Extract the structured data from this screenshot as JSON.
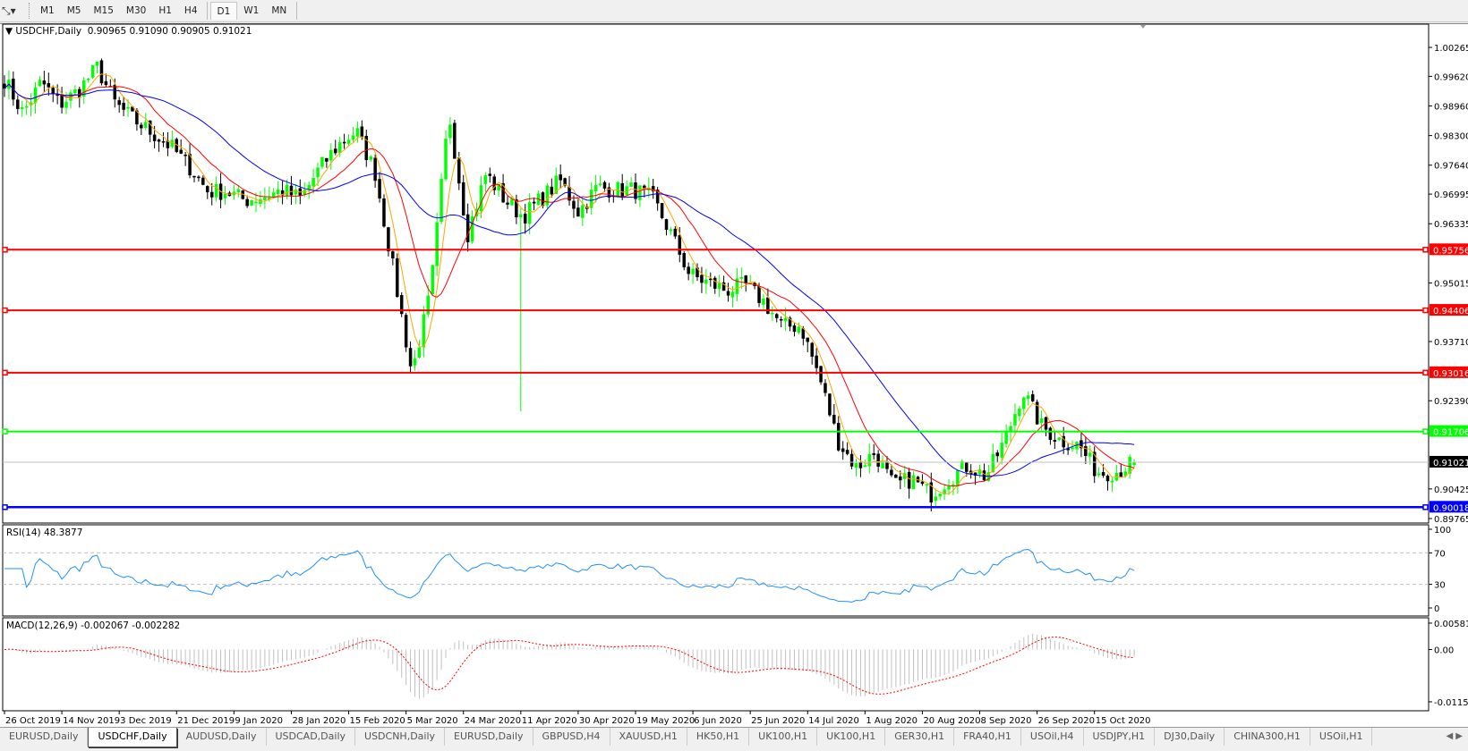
{
  "toolbar": {
    "tool_icon": "line-tools-icon",
    "timeframes": [
      "M1",
      "M5",
      "M15",
      "M30",
      "H1",
      "H4",
      "D1",
      "W1",
      "MN"
    ],
    "active_timeframe": "D1"
  },
  "chart": {
    "symbol_label": "USDCHF,Daily",
    "ohlc": {
      "open": 0.90965,
      "high": 0.9109,
      "low": 0.90905,
      "close": 0.91021
    },
    "ohlc_text": "0.90965 0.91090 0.90905 0.91021",
    "colors": {
      "background": "#ffffff",
      "bull": "#00ff00",
      "bear": "#000000",
      "ma_fast": "#ffa500",
      "ma_mid": "#ff0000",
      "ma_slow": "#0000ff"
    },
    "price_ticks": [
      "1.00265",
      "0.99620",
      "0.98960",
      "0.98300",
      "0.97640",
      "0.96995",
      "0.96335",
      "0.95015",
      "0.93710",
      "0.92390",
      "0.90425",
      "0.89765"
    ],
    "current_price": "0.91021",
    "hlines": [
      {
        "price": 0.95756,
        "label": "0.95756",
        "color": "#ff0000"
      },
      {
        "price": 0.94406,
        "label": "0.94406",
        "color": "#ff0000"
      },
      {
        "price": 0.93016,
        "label": "0.93016",
        "color": "#ff0000"
      },
      {
        "price": 0.91706,
        "label": "0.91706",
        "color": "#00ff00"
      },
      {
        "price": 0.90018,
        "label": "0.90018",
        "color": "#0000ff"
      }
    ],
    "date_ticks": [
      "26 Oct 2019",
      "14 Nov 2019",
      "3 Dec 2019",
      "21 Dec 2019",
      "9 Jan 2020",
      "28 Jan 2020",
      "15 Feb 2020",
      "5 Mar 2020",
      "24 Mar 2020",
      "11 Apr 2020",
      "30 Apr 2020",
      "19 May 2020",
      "6 Jun 2020",
      "25 Jun 2020",
      "14 Jul 2020",
      "1 Aug 2020",
      "20 Aug 2020",
      "8 Sep 2020",
      "26 Sep 2020",
      "15 Oct 2020"
    ]
  },
  "chart_data": {
    "type": "candlestick",
    "symbol": "USDCHF",
    "timeframe": "Daily",
    "x_range": [
      "26 Oct 2019",
      "29 Oct 2020"
    ],
    "ylim": [
      0.89765,
      1.00265
    ],
    "approx_weekly_closes": [
      0.9955,
      0.988,
      0.995,
      0.99,
      0.993,
      0.9982,
      0.99,
      0.9865,
      0.9835,
      0.9805,
      0.976,
      0.9705,
      0.9705,
      0.9686,
      0.9694,
      0.9708,
      0.969,
      0.9756,
      0.9808,
      0.984,
      0.975,
      0.953,
      0.93,
      0.948,
      0.9881,
      0.961,
      0.9745,
      0.9688,
      0.965,
      0.969,
      0.973,
      0.966,
      0.9715,
      0.9709,
      0.9709,
      0.969,
      0.961,
      0.952,
      0.9502,
      0.9485,
      0.9497,
      0.946,
      0.9405,
      0.9406,
      0.9292,
      0.915,
      0.909,
      0.9123,
      0.9049,
      0.9065,
      0.903,
      0.9065,
      0.9095,
      0.907,
      0.915,
      0.926,
      0.9182,
      0.9151,
      0.914,
      0.908,
      0.908,
      0.91021
    ],
    "moving_averages": [
      "fast (orange)",
      "medium (red)",
      "slow (blue)"
    ]
  },
  "rsi": {
    "label": "RSI(14) 48.3877",
    "ticks": [
      "100",
      "70",
      "30",
      "0"
    ],
    "levels": [
      70,
      30
    ],
    "color": "#1e90ff"
  },
  "macd": {
    "label": "MACD(12,26,9) -0.002067 -0.002282",
    "ticks": [
      "0.005818",
      "0.00",
      "-0.011514"
    ],
    "hist_color": "#c0c0c0",
    "signal_color": "#ff0000"
  },
  "tabs": [
    "EURUSD,Daily",
    "USDCHF,Daily",
    "AUDUSD,Daily",
    "USDCAD,Daily",
    "USDCNH,Daily",
    "EURUSD,Daily",
    "GBPUSD,H4",
    "XAUUSD,H1",
    "HK50,H1",
    "UK100,H1",
    "UK100,H1",
    "GER30,H1",
    "FRA40,H1",
    "USOil,H4",
    "USDJPY,H1",
    "DJ30,Daily",
    "CHINA300,H1",
    "USOil,H1"
  ],
  "active_tab": 1
}
